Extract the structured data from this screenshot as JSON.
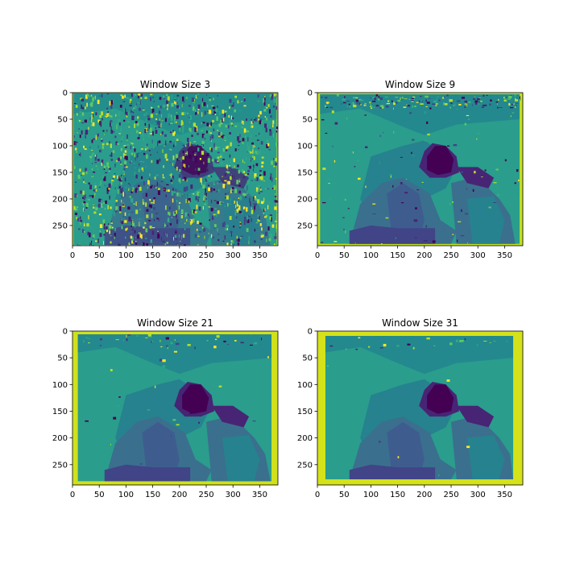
{
  "chart_data": [
    {
      "type": "heatmap",
      "title": "Window Size 3",
      "xlim": [
        0,
        384
      ],
      "ylim": [
        288,
        0
      ],
      "xticks": [
        0,
        50,
        100,
        150,
        200,
        250,
        300,
        350
      ],
      "yticks": [
        0,
        50,
        100,
        150,
        200,
        250
      ],
      "colormap": "viridis",
      "border_color": "#b5de2b"
    },
    {
      "type": "heatmap",
      "title": "Window Size 9",
      "xlim": [
        0,
        384
      ],
      "ylim": [
        288,
        0
      ],
      "xticks": [
        0,
        50,
        100,
        150,
        200,
        250,
        300,
        350
      ],
      "yticks": [
        0,
        50,
        100,
        150,
        200,
        250
      ],
      "colormap": "viridis",
      "border_color": "#c2df23"
    },
    {
      "type": "heatmap",
      "title": "Window Size 21",
      "xlim": [
        0,
        384
      ],
      "ylim": [
        288,
        0
      ],
      "xticks": [
        0,
        50,
        100,
        150,
        200,
        250,
        300,
        350
      ],
      "yticks": [
        0,
        50,
        100,
        150,
        200,
        250
      ],
      "colormap": "viridis",
      "border_color": "#d0e11c"
    },
    {
      "type": "heatmap",
      "title": "Window Size 31",
      "xlim": [
        0,
        384
      ],
      "ylim": [
        288,
        0
      ],
      "xticks": [
        0,
        50,
        100,
        150,
        200,
        250,
        300,
        350
      ],
      "yticks": [
        0,
        50,
        100,
        150,
        200,
        250
      ],
      "colormap": "viridis",
      "border_color": "#d5e21a"
    }
  ]
}
